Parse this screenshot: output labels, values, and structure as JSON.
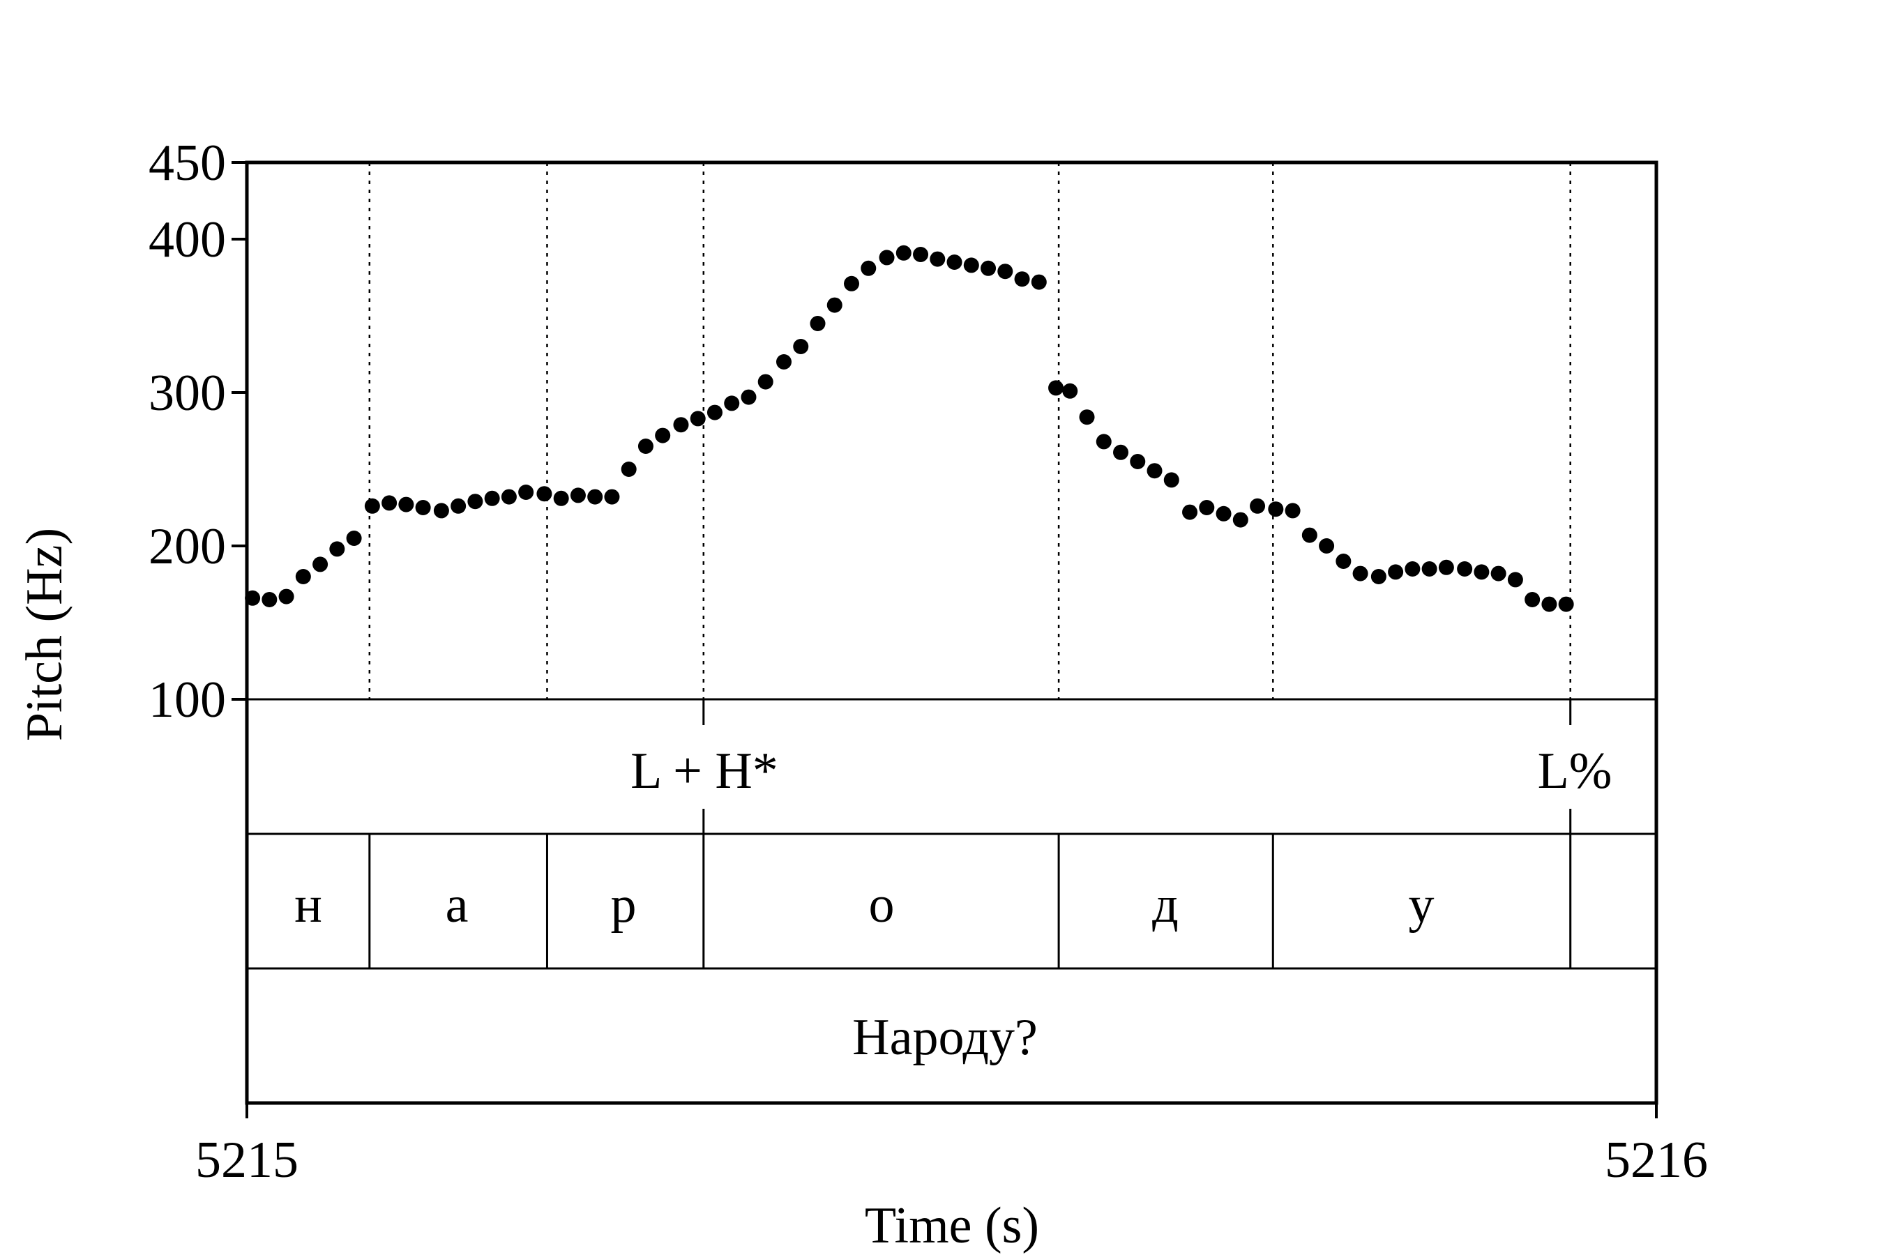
{
  "chart_data": {
    "type": "scatter",
    "xlabel": "Time (s)",
    "ylabel": "Pitch (Hz)",
    "xlim": [
      5215,
      5216
    ],
    "ylim": [
      100,
      450
    ],
    "x_ticks": [
      "5215",
      "5216"
    ],
    "y_ticks": [
      100,
      200,
      300,
      400,
      450
    ],
    "y_tick_labels": [
      "100",
      "200",
      "300",
      "400",
      "450"
    ],
    "grid": false,
    "legend": "none",
    "colors": {
      "points": "#000000",
      "frame": "#000000",
      "background": "#ffffff"
    },
    "boundaries": [
      5215.087,
      5215.213,
      5215.324,
      5215.576,
      5215.728,
      5215.939
    ],
    "tones": [
      {
        "label": "L + H*",
        "time": 5215.324
      },
      {
        "label": "L%",
        "time": 5215.939
      }
    ],
    "segments": [
      {
        "label": "н",
        "start": 5215.0,
        "end": 5215.087
      },
      {
        "label": "а",
        "start": 5215.087,
        "end": 5215.213
      },
      {
        "label": "р",
        "start": 5215.213,
        "end": 5215.324
      },
      {
        "label": "о",
        "start": 5215.324,
        "end": 5215.576
      },
      {
        "label": "д",
        "start": 5215.576,
        "end": 5215.728
      },
      {
        "label": "у",
        "start": 5215.728,
        "end": 5215.939
      },
      {
        "label": "",
        "start": 5215.939,
        "end": 5216.0
      }
    ],
    "word": {
      "label": "Народу?",
      "start": 5215.0,
      "end": 5216.0
    },
    "series": [
      {
        "x": [
          5215.004,
          5215.016,
          5215.028,
          5215.04,
          5215.052,
          5215.064,
          5215.076,
          5215.089,
          5215.101,
          5215.113,
          5215.125,
          5215.138,
          5215.15,
          5215.162,
          5215.174,
          5215.186,
          5215.198,
          5215.211,
          5215.223,
          5215.235,
          5215.247,
          5215.259,
          5215.271,
          5215.283,
          5215.295,
          5215.308,
          5215.32,
          5215.332,
          5215.344,
          5215.356,
          5215.368,
          5215.381,
          5215.393,
          5215.405,
          5215.417,
          5215.429,
          5215.441,
          5215.454,
          5215.466,
          5215.478,
          5215.49,
          5215.502,
          5215.514,
          5215.526,
          5215.538,
          5215.55,
          5215.562,
          5215.574,
          5215.584,
          5215.596,
          5215.608,
          5215.62,
          5215.632,
          5215.644,
          5215.656,
          5215.669,
          5215.681,
          5215.693,
          5215.705,
          5215.717,
          5215.73,
          5215.742,
          5215.754,
          5215.766,
          5215.778,
          5215.79,
          5215.803,
          5215.815,
          5215.827,
          5215.839,
          5215.851,
          5215.864,
          5215.876,
          5215.888,
          5215.9,
          5215.912,
          5215.924,
          5215.936
        ],
        "y": [
          166,
          165,
          167,
          180,
          188,
          198,
          205,
          226,
          228,
          227,
          225,
          223,
          226,
          229,
          231,
          232,
          235,
          234,
          231,
          233,
          232,
          232,
          250,
          265,
          272,
          279,
          283,
          287,
          293,
          297,
          307,
          320,
          330,
          345,
          357,
          371,
          381,
          388,
          391,
          390,
          387,
          385,
          383,
          381,
          379,
          374,
          372,
          303,
          301,
          284,
          268,
          261,
          255,
          249,
          243,
          222,
          225,
          221,
          217,
          226,
          224,
          223,
          207,
          200,
          190,
          182,
          180,
          183,
          185,
          185,
          186,
          185,
          183,
          182,
          178,
          165,
          162,
          162
        ]
      }
    ]
  }
}
